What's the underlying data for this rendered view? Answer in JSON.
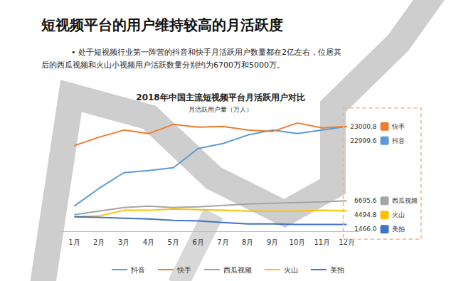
{
  "title": "短视频平台的用户维持较高的月活跃度",
  "annotation": [
    "• 处于短视频行业第一阵营的抖音和快手月活跃用户数量都在2亿左右，位居其",
    "后的西瓜视频和火山小视频用户活跃数量分别约为6700万和5000万。"
  ],
  "chart_data": {
    "type": "line",
    "title": "2018年中国主流短视频平台月活跃用户对比",
    "subtitle": "月活跃用户量（万人）",
    "categories": [
      "1月",
      "2月",
      "3月",
      "4月",
      "5月",
      "6月",
      "7月",
      "8月",
      "9月",
      "10月",
      "11月",
      "12月"
    ],
    "series": [
      {
        "name": "抖音",
        "color": "#5b9bd5",
        "values": [
          5520,
          9420,
          12850,
          13320,
          13950,
          18160,
          19250,
          21120,
          22210,
          21430,
          22210,
          22999.6
        ],
        "value_labels": [
          null,
          null,
          null,
          null,
          null,
          null,
          null,
          null,
          null,
          null,
          null,
          "22999.6"
        ]
      },
      {
        "name": "快手",
        "color": "#ed7d31",
        "values": [
          18780,
          20650,
          22210,
          21430,
          23460,
          22840,
          23000,
          22210,
          21900,
          23770,
          22680,
          23000.8
        ],
        "value_labels": [
          null,
          null,
          null,
          null,
          null,
          null,
          null,
          null,
          null,
          null,
          null,
          "23000.8"
        ]
      },
      {
        "name": "西瓜视频",
        "color": "#a5a5a5",
        "values": [
          3650,
          4430,
          5210,
          5520,
          5210,
          5370,
          5680,
          5990,
          6150,
          6300,
          6460,
          6695.6
        ],
        "value_labels": [
          null,
          null,
          null,
          null,
          null,
          null,
          null,
          null,
          null,
          null,
          null,
          "6695.6"
        ]
      },
      {
        "name": "火山",
        "color": "#ffc000",
        "values": [
          3180,
          3340,
          4590,
          4590,
          4900,
          4740,
          4590,
          4430,
          4430,
          4430,
          4590,
          4494.8
        ],
        "value_labels": [
          null,
          null,
          null,
          null,
          null,
          null,
          null,
          null,
          null,
          null,
          null,
          "4494.8"
        ]
      },
      {
        "name": "美拍",
        "color": "#4472c4",
        "values": [
          3180,
          3030,
          2870,
          2710,
          2400,
          2250,
          1930,
          1620,
          1620,
          1470,
          1470,
          1466.0
        ],
        "value_labels": [
          null,
          null,
          null,
          null,
          null,
          null,
          null,
          null,
          null,
          null,
          null,
          "1466.0"
        ]
      }
    ],
    "ylim": [
      0,
      25000
    ],
    "yticks": [
      0,
      5000,
      10000,
      15000,
      20000,
      25000
    ],
    "grid": false,
    "legend": "bottom",
    "tick_labels": "x",
    "data_labels": true
  }
}
